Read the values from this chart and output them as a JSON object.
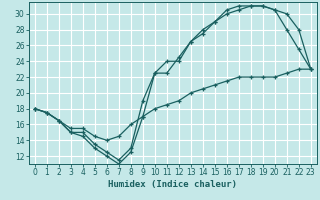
{
  "xlabel": "Humidex (Indice chaleur)",
  "bg_color": "#c5e8e8",
  "grid_color": "#ffffff",
  "line_color": "#1a6060",
  "xlim": [
    -0.5,
    23.5
  ],
  "ylim": [
    11,
    31.5
  ],
  "xticks": [
    0,
    1,
    2,
    3,
    4,
    5,
    6,
    7,
    8,
    9,
    10,
    11,
    12,
    13,
    14,
    15,
    16,
    17,
    18,
    19,
    20,
    21,
    22,
    23
  ],
  "yticks": [
    12,
    14,
    16,
    18,
    20,
    22,
    24,
    26,
    28,
    30
  ],
  "curve1_x": [
    0,
    1,
    2,
    3,
    4,
    5,
    6,
    7,
    8,
    9,
    10,
    11,
    12,
    13,
    14,
    15,
    16,
    17,
    18,
    19,
    20,
    21,
    22,
    23
  ],
  "curve1_y": [
    18,
    17.5,
    16.5,
    15,
    14.5,
    13,
    12,
    11,
    12.5,
    17,
    22.5,
    24,
    24,
    26.5,
    28,
    29,
    30.5,
    31,
    31,
    31,
    30.5,
    28,
    25.5,
    23
  ],
  "curve2_x": [
    0,
    1,
    2,
    3,
    4,
    5,
    6,
    7,
    8,
    9,
    10,
    11,
    12,
    13,
    14,
    15,
    16,
    17,
    18,
    19,
    20,
    21,
    22,
    23
  ],
  "curve2_y": [
    18,
    17.5,
    16.5,
    15,
    15,
    13.5,
    12.5,
    11.5,
    13,
    19,
    22.5,
    22.5,
    24.5,
    26.5,
    27.5,
    29,
    30,
    30.5,
    31,
    31,
    30.5,
    30,
    28,
    23
  ],
  "curve3_x": [
    0,
    1,
    2,
    3,
    4,
    5,
    6,
    7,
    8,
    9,
    10,
    11,
    12,
    13,
    14,
    15,
    16,
    17,
    18,
    19,
    20,
    21,
    22,
    23
  ],
  "curve3_y": [
    18,
    17.5,
    16.5,
    15.5,
    15.5,
    14.5,
    14,
    14.5,
    16,
    17,
    18,
    18.5,
    19,
    20,
    20.5,
    21,
    21.5,
    22,
    22,
    22,
    22,
    22.5,
    23,
    23
  ]
}
